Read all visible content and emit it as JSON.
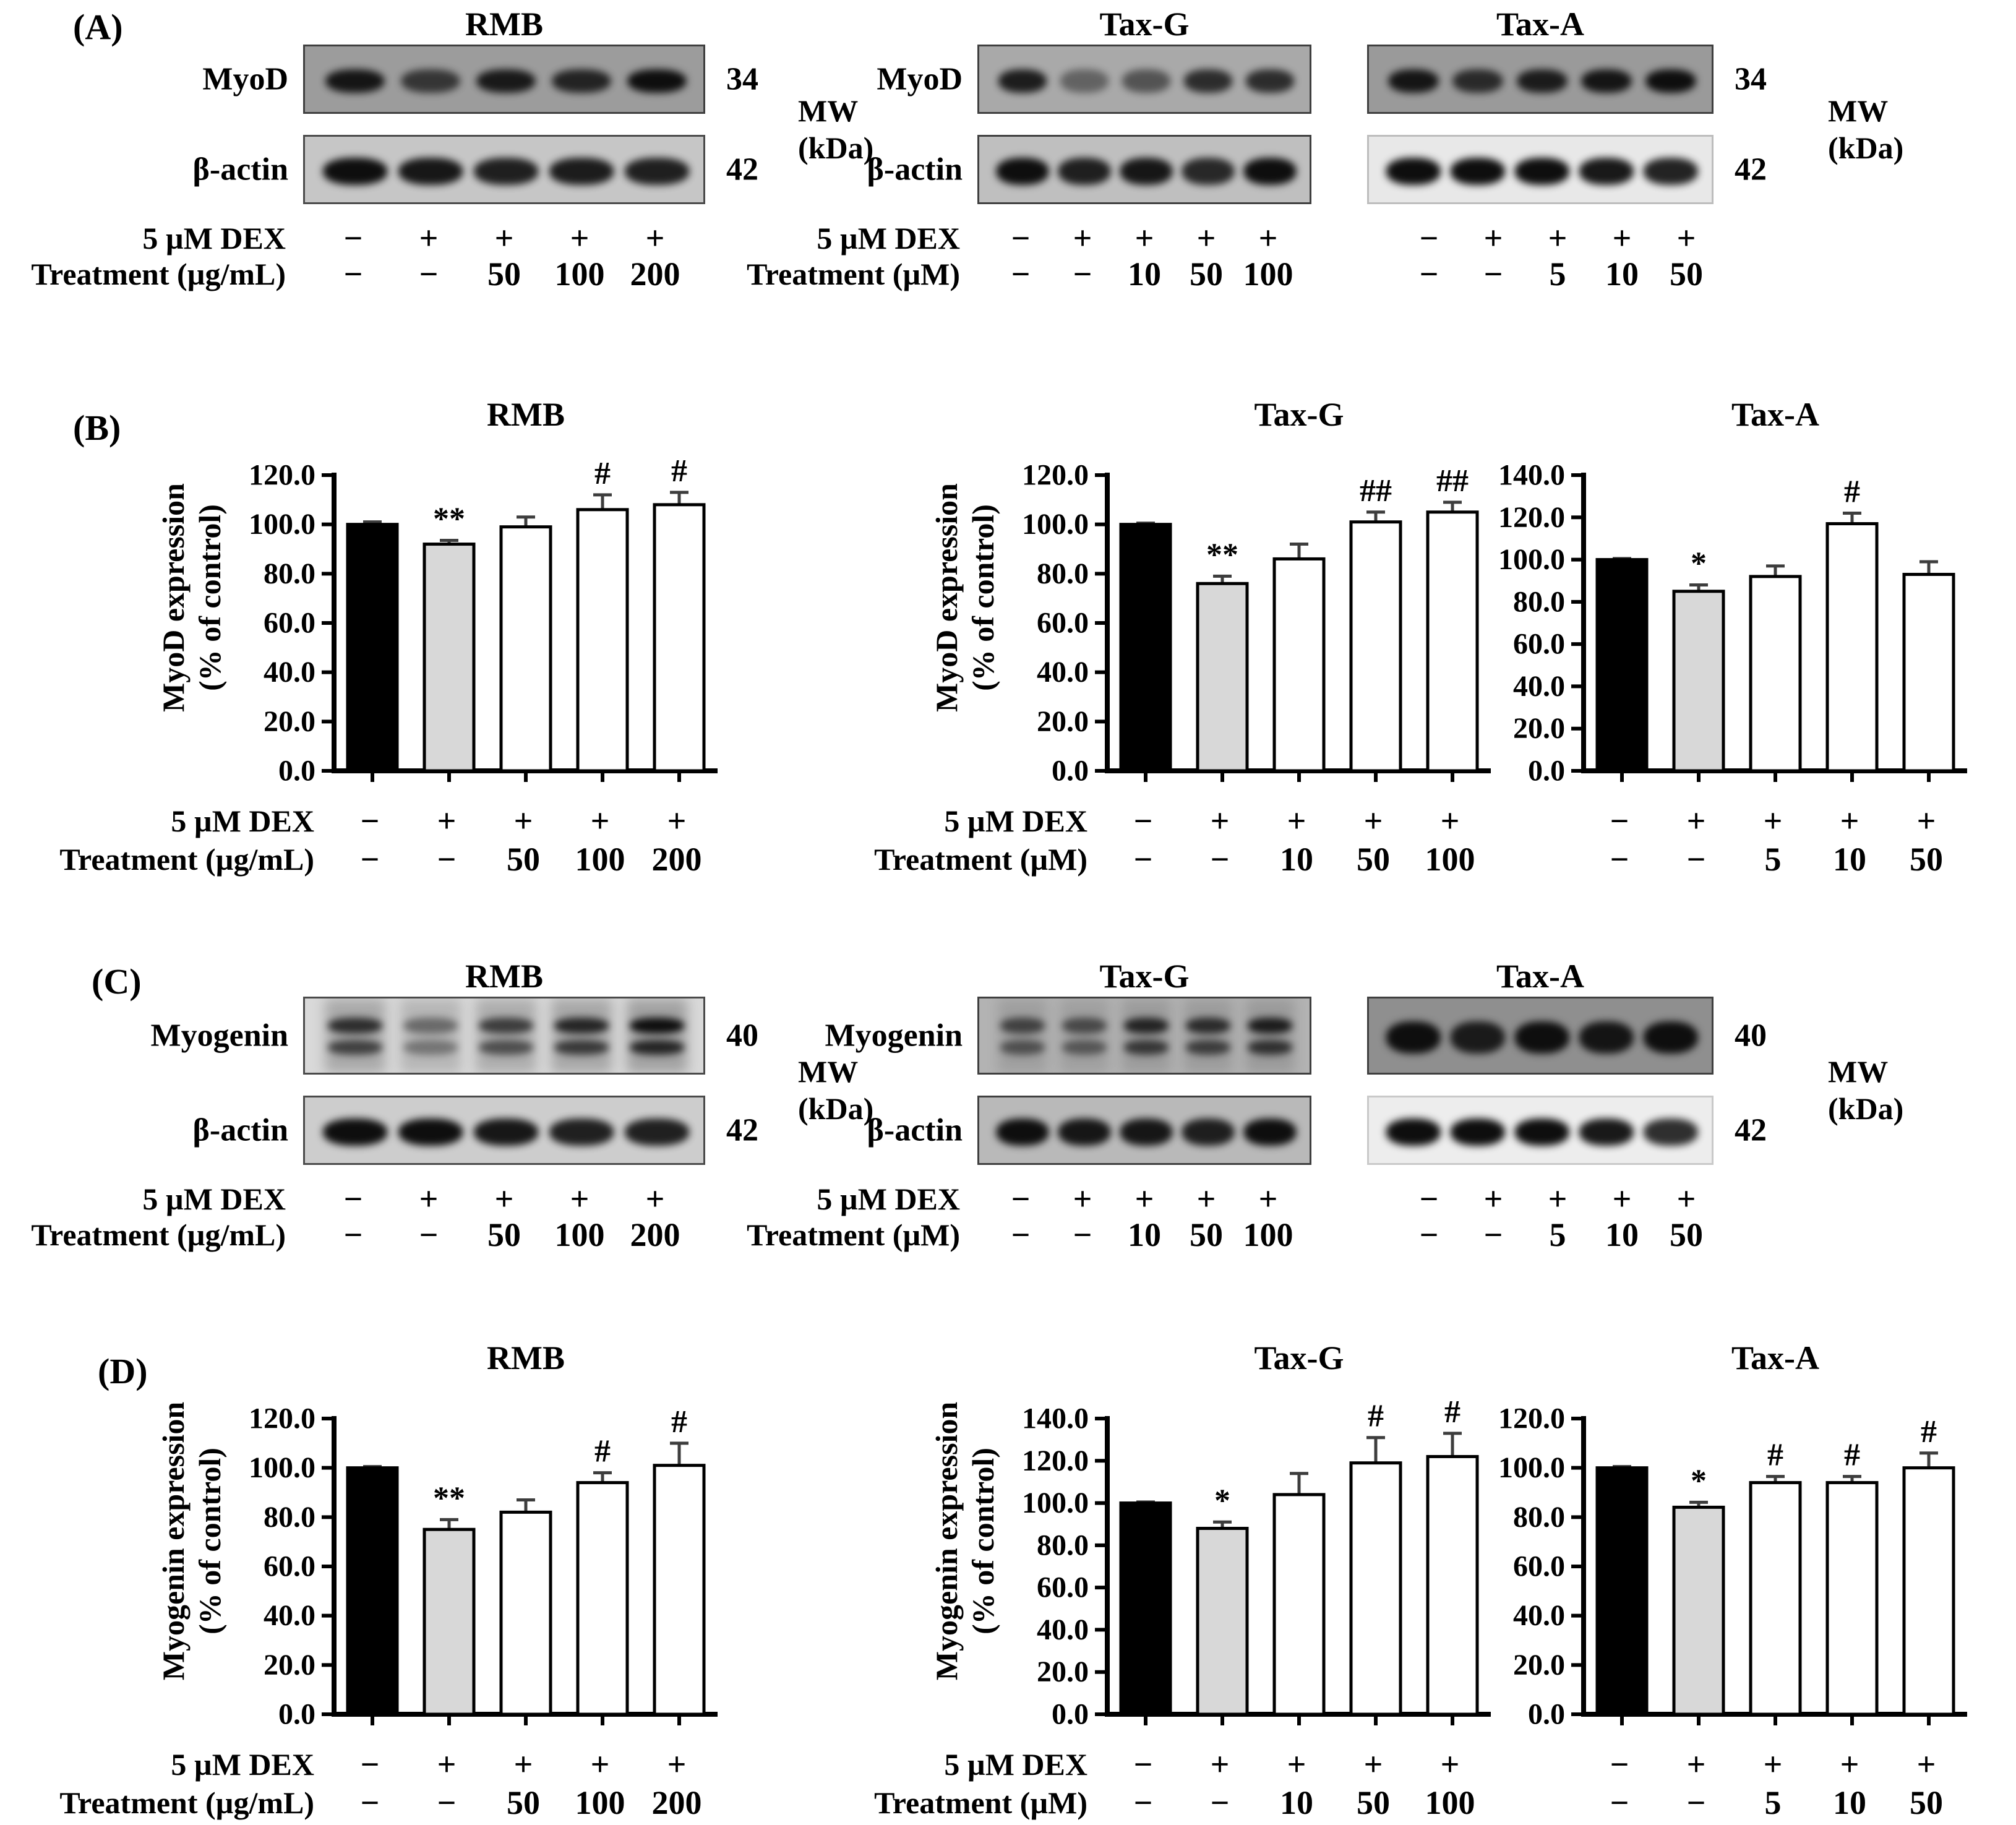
{
  "panel_letters": {
    "A": "(A)",
    "B": "(B)",
    "C": "(C)",
    "D": "(D)"
  },
  "mw_note": {
    "line1": "MW",
    "line2": "(kDa)"
  },
  "row_labels": {
    "dex": "5 µM DEX",
    "treatment_ugml": "Treatment (µg/mL)",
    "treatment_um": "Treatment (µM)"
  },
  "dex_symbols": [
    "−",
    "+",
    "+",
    "+",
    "+"
  ],
  "treatments": {
    "rmb": [
      "−",
      "−",
      "50",
      "100",
      "200"
    ],
    "taxg": [
      "−",
      "−",
      "10",
      "50",
      "100"
    ],
    "taxa": [
      "−",
      "−",
      "5",
      "10",
      "50"
    ]
  },
  "group_titles": [
    "RMB",
    "Tax-G",
    "Tax-A"
  ],
  "blot_panels": [
    {
      "panel": "A",
      "groups": [
        {
          "title": "RMB",
          "protein": "MyoD",
          "loading": "β-actin",
          "mw_top": "34",
          "mw_bottom": "42",
          "show_labels": true,
          "show_mw": true,
          "treatment_key": "rmb",
          "treatment_label_key": "treatment_ugml",
          "show_row_labels": true,
          "top_blot": {
            "bg": "#9c9c9c",
            "border": "#3f3f3f",
            "style": "single",
            "lane_opacity": [
              0.95,
              0.72,
              0.92,
              0.85,
              1
            ]
          },
          "bottom_blot": {
            "bg": "#c6c6c6",
            "border": "#4a4a4a",
            "style": "actin",
            "lane_opacity": [
              1,
              0.95,
              0.9,
              0.92,
              0.9
            ]
          }
        },
        {
          "title": "Tax-G",
          "protein": "MyoD",
          "loading": "β-actin",
          "mw_top": "",
          "mw_bottom": "",
          "show_labels": true,
          "show_mw": false,
          "treatment_key": "taxg",
          "treatment_label_key": "treatment_um",
          "show_row_labels": true,
          "top_blot": {
            "bg": "#a9a9a9",
            "border": "#3f3f3f",
            "style": "single",
            "lane_opacity": [
              0.9,
              0.45,
              0.55,
              0.8,
              0.8
            ]
          },
          "bottom_blot": {
            "bg": "#bfbfbf",
            "border": "#3f3f3f",
            "style": "actin",
            "lane_opacity": [
              1,
              0.9,
              0.95,
              0.85,
              1
            ]
          }
        },
        {
          "title": "Tax-A",
          "protein": "MyoD",
          "loading": "β-actin",
          "mw_top": "34",
          "mw_bottom": "42",
          "show_labels": false,
          "show_mw": true,
          "treatment_key": "taxa",
          "treatment_label_key": "",
          "show_row_labels": false,
          "top_blot": {
            "bg": "#9a9a9a",
            "border": "#3f3f3f",
            "style": "single",
            "lane_opacity": [
              0.95,
              0.8,
              0.9,
              0.95,
              1
            ]
          },
          "bottom_blot": {
            "bg": "#e8e8e8",
            "border": "#bdbdbd",
            "style": "actin",
            "lane_opacity": [
              1,
              1,
              1,
              0.95,
              0.9
            ]
          }
        }
      ]
    },
    {
      "panel": "C",
      "groups": [
        {
          "title": "RMB",
          "protein": "Myogenin",
          "loading": "β-actin",
          "mw_top": "40",
          "mw_bottom": "42",
          "show_labels": true,
          "show_mw": true,
          "treatment_key": "rmb",
          "treatment_label_key": "treatment_ugml",
          "show_row_labels": true,
          "top_blot": {
            "bg": "#d9d9d9",
            "border": "#4a4a4a",
            "style": "double",
            "smear": 0.2,
            "lane_opacity": [
              0.8,
              0.45,
              0.7,
              0.85,
              1
            ]
          },
          "bottom_blot": {
            "bg": "#cdcdcd",
            "border": "#4a4a4a",
            "style": "actin",
            "lane_opacity": [
              1,
              1,
              0.95,
              0.9,
              0.9
            ]
          }
        },
        {
          "title": "Tax-G",
          "protein": "Myogenin",
          "loading": "β-actin",
          "mw_top": "",
          "mw_bottom": "",
          "show_labels": true,
          "show_mw": false,
          "treatment_key": "taxg",
          "treatment_label_key": "treatment_um",
          "show_row_labels": true,
          "top_blot": {
            "bg": "#b3b3b3",
            "border": "#3f3f3f",
            "style": "double",
            "smear": 0.12,
            "lane_opacity": [
              0.65,
              0.6,
              0.85,
              0.8,
              0.9
            ]
          },
          "bottom_blot": {
            "bg": "#b9b9b9",
            "border": "#3f3f3f",
            "style": "actin",
            "lane_opacity": [
              1,
              0.95,
              0.95,
              0.9,
              1
            ]
          }
        },
        {
          "title": "Tax-A",
          "protein": "Myogenin",
          "loading": "β-actin",
          "mw_top": "40",
          "mw_bottom": "42",
          "show_labels": false,
          "show_mw": true,
          "treatment_key": "taxa",
          "treatment_label_key": "",
          "show_row_labels": false,
          "top_blot": {
            "bg": "#8f8f8f",
            "border": "#3f3f3f",
            "style": "thick",
            "lane_opacity": [
              1,
              0.9,
              1,
              0.95,
              1
            ]
          },
          "bottom_blot": {
            "bg": "#ededed",
            "border": "#c9c9c9",
            "style": "actin",
            "lane_opacity": [
              1,
              1,
              1,
              0.95,
              0.85
            ]
          }
        }
      ]
    }
  ],
  "chart_style": {
    "bar_fills": [
      "#000000",
      "#d8d8d8",
      "#ffffff",
      "#ffffff",
      "#ffffff"
    ],
    "bar_stroke": "#000000",
    "error_color": "#3d3d3d",
    "axis_color": "#000000"
  },
  "chart_data": [
    {
      "panel": "B",
      "slot": 0,
      "type": "bar",
      "title": "RMB",
      "ylabel_line1": "MyoD expression",
      "ylabel_line2": "(% of control)",
      "show_ylabel": true,
      "ylim": [
        0,
        120
      ],
      "ytick_step": 20,
      "grid": false,
      "legend": null,
      "categories": [
        "DEX− / −",
        "DEX+ / −",
        "DEX+ / 50",
        "DEX+ / 100",
        "DEX+ / 200"
      ],
      "values": [
        100,
        92,
        99,
        106,
        108
      ],
      "errors": [
        1,
        1.5,
        4,
        6,
        5
      ],
      "annotations": [
        "",
        "**",
        "",
        "#",
        "#"
      ],
      "dex_label": "5 µM DEX",
      "treatment_label": "Treatment (µg/mL)",
      "show_row_labels": true,
      "x_dex": [
        "−",
        "+",
        "+",
        "+",
        "+"
      ],
      "x_treatment": [
        "−",
        "−",
        "50",
        "100",
        "200"
      ]
    },
    {
      "panel": "B",
      "slot": 1,
      "type": "bar",
      "title": "Tax-G",
      "ylabel_line1": "MyoD expression",
      "ylabel_line2": "(% of control)",
      "show_ylabel": true,
      "ylim": [
        0,
        120
      ],
      "ytick_step": 20,
      "grid": false,
      "legend": null,
      "categories": [
        "DEX− / −",
        "DEX+ / −",
        "DEX+ / 10",
        "DEX+ / 50",
        "DEX+ / 100"
      ],
      "values": [
        100,
        76,
        86,
        101,
        105
      ],
      "errors": [
        0.5,
        3,
        6,
        4,
        4
      ],
      "annotations": [
        "",
        "**",
        "",
        "##",
        "##"
      ],
      "dex_label": "5 µM DEX",
      "treatment_label": "Treatment (µM)",
      "show_row_labels": true,
      "x_dex": [
        "−",
        "+",
        "+",
        "+",
        "+"
      ],
      "x_treatment": [
        "−",
        "−",
        "10",
        "50",
        "100"
      ]
    },
    {
      "panel": "B",
      "slot": 2,
      "type": "bar",
      "title": "Tax-A",
      "ylabel_line1": "",
      "ylabel_line2": "",
      "show_ylabel": false,
      "ylim": [
        0,
        140
      ],
      "ytick_step": 20,
      "grid": false,
      "legend": null,
      "categories": [
        "DEX− / −",
        "DEX+ / −",
        "DEX+ / 5",
        "DEX+ / 10",
        "DEX+ / 50"
      ],
      "values": [
        100,
        85,
        92,
        117,
        93
      ],
      "errors": [
        0.5,
        3,
        5,
        5,
        6
      ],
      "annotations": [
        "",
        "*",
        "",
        "#",
        ""
      ],
      "dex_label": "",
      "treatment_label": "",
      "show_row_labels": false,
      "x_dex": [
        "−",
        "+",
        "+",
        "+",
        "+"
      ],
      "x_treatment": [
        "−",
        "−",
        "5",
        "10",
        "50"
      ]
    },
    {
      "panel": "D",
      "slot": 0,
      "type": "bar",
      "title": "RMB",
      "ylabel_line1": "Myogenin expression",
      "ylabel_line2": "(% of control)",
      "show_ylabel": true,
      "ylim": [
        0,
        120
      ],
      "ytick_step": 20,
      "grid": false,
      "legend": null,
      "categories": [
        "DEX− / −",
        "DEX+ / −",
        "DEX+ / 50",
        "DEX+ / 100",
        "DEX+ / 200"
      ],
      "values": [
        100,
        75,
        82,
        94,
        101
      ],
      "errors": [
        0.5,
        4,
        5,
        4,
        9
      ],
      "annotations": [
        "",
        "**",
        "",
        "#",
        "#"
      ],
      "dex_label": "5 µM DEX",
      "treatment_label": "Treatment (µg/mL)",
      "show_row_labels": true,
      "x_dex": [
        "−",
        "+",
        "+",
        "+",
        "+"
      ],
      "x_treatment": [
        "−",
        "−",
        "50",
        "100",
        "200"
      ]
    },
    {
      "panel": "D",
      "slot": 1,
      "type": "bar",
      "title": "Tax-G",
      "ylabel_line1": "Myogenin expression",
      "ylabel_line2": "(% of control)",
      "show_ylabel": true,
      "ylim": [
        0,
        140
      ],
      "ytick_step": 20,
      "grid": false,
      "legend": null,
      "categories": [
        "DEX− / −",
        "DEX+ / −",
        "DEX+ / 10",
        "DEX+ / 50",
        "DEX+ / 100"
      ],
      "values": [
        100,
        88,
        104,
        119,
        122
      ],
      "errors": [
        0.5,
        3,
        10,
        12,
        11
      ],
      "annotations": [
        "",
        "*",
        "",
        "#",
        "#"
      ],
      "dex_label": "5 µM DEX",
      "treatment_label": "Treatment (µM)",
      "show_row_labels": true,
      "x_dex": [
        "−",
        "+",
        "+",
        "+",
        "+"
      ],
      "x_treatment": [
        "−",
        "−",
        "10",
        "50",
        "100"
      ]
    },
    {
      "panel": "D",
      "slot": 2,
      "type": "bar",
      "title": "Tax-A",
      "ylabel_line1": "",
      "ylabel_line2": "",
      "show_ylabel": false,
      "ylim": [
        0,
        120
      ],
      "ytick_step": 20,
      "grid": false,
      "legend": null,
      "categories": [
        "DEX− / −",
        "DEX+ / −",
        "DEX+ / 5",
        "DEX+ / 10",
        "DEX+ / 50"
      ],
      "values": [
        100,
        84,
        94,
        94,
        100
      ],
      "errors": [
        0.5,
        2,
        2.5,
        2.5,
        6
      ],
      "annotations": [
        "",
        "*",
        "#",
        "#",
        "#"
      ],
      "dex_label": "",
      "treatment_label": "",
      "show_row_labels": false,
      "x_dex": [
        "−",
        "+",
        "+",
        "+",
        "+"
      ],
      "x_treatment": [
        "−",
        "−",
        "5",
        "10",
        "50"
      ]
    }
  ]
}
